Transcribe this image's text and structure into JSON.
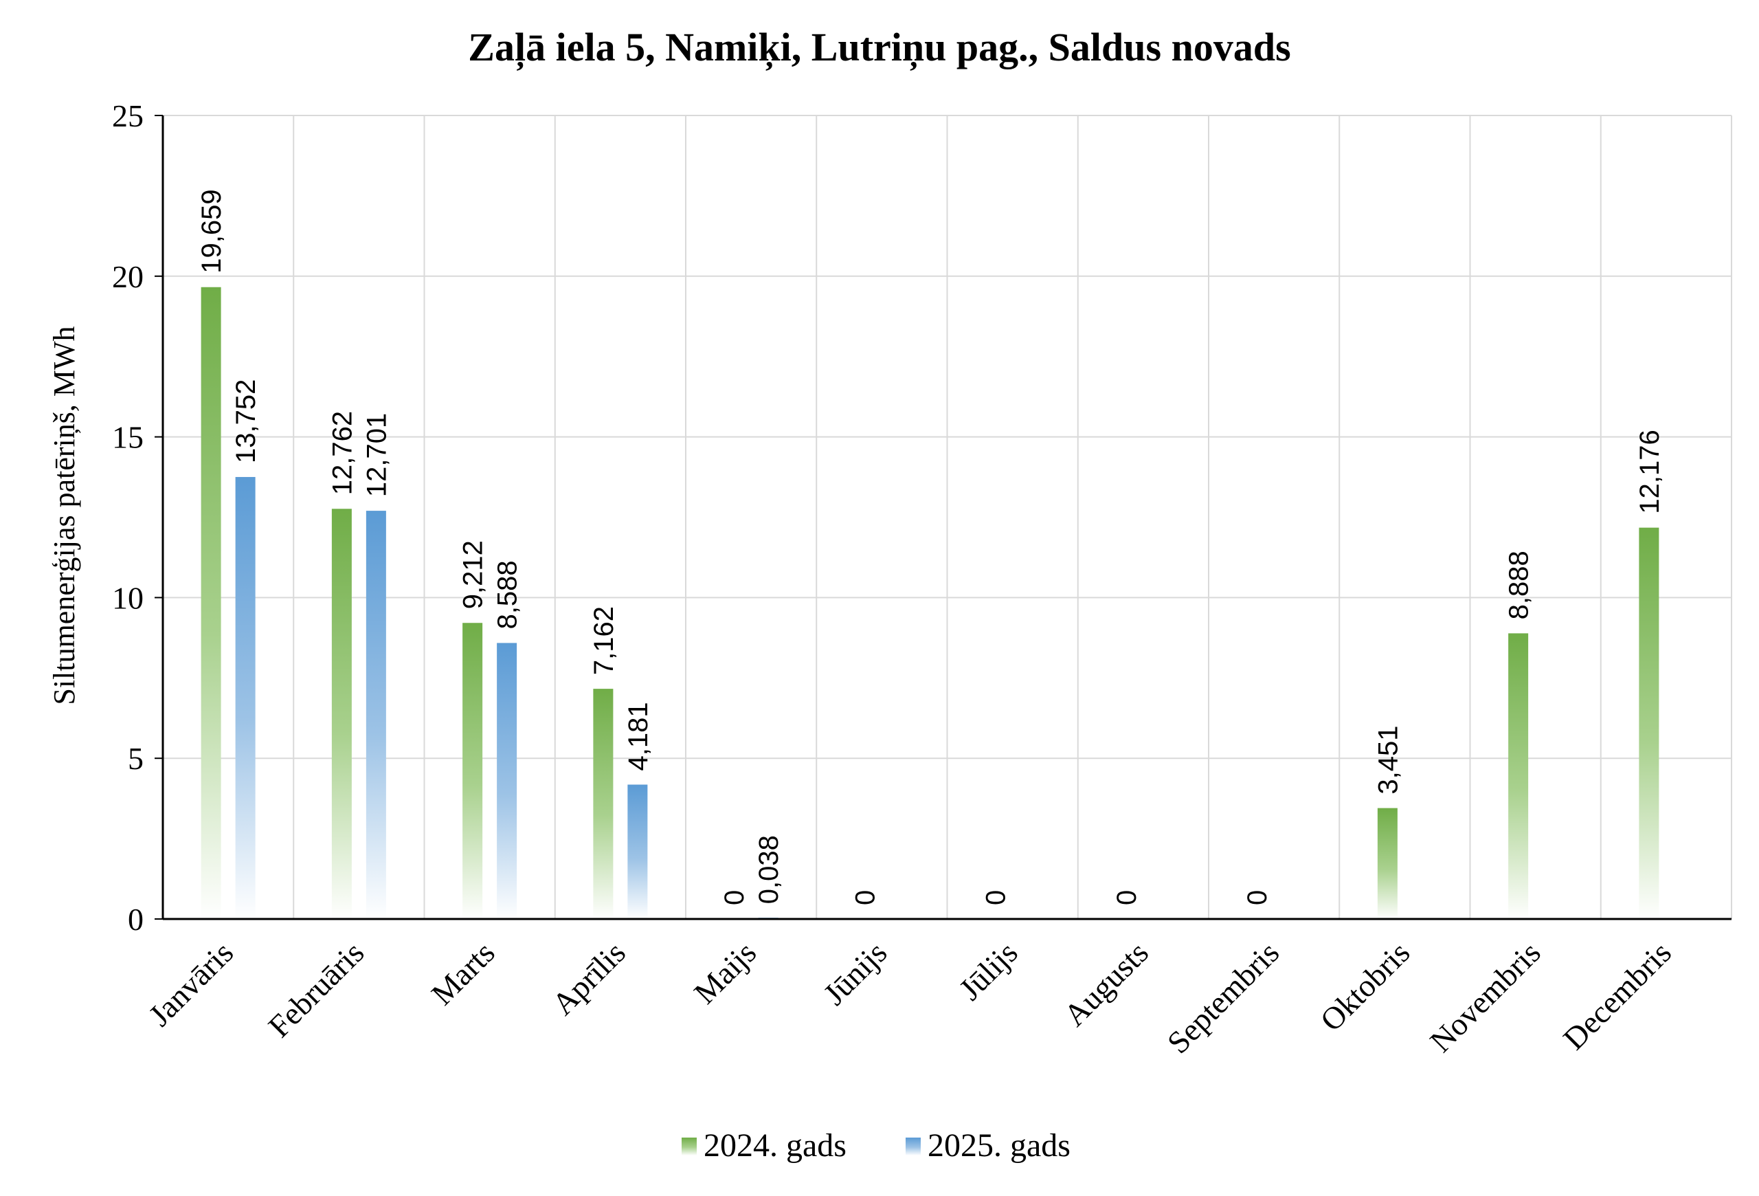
{
  "chart_data": {
    "type": "bar",
    "title": "Zaļā iela 5, Namiķi, Lutriņu pag., Saldus novads",
    "xlabel": "",
    "ylabel": "Siltumenerģijas patēriņš, MWh",
    "ylim": [
      0,
      25
    ],
    "yticks": [
      "0",
      "5",
      "10",
      "15",
      "20",
      "25"
    ],
    "categories": [
      "Janvāris",
      "Februāris",
      "Marts",
      "Aprīlis",
      "Maijs",
      "Jūnijs",
      "Jūlijs",
      "Augusts",
      "Septembris",
      "Oktobris",
      "Novembris",
      "Decembris"
    ],
    "series": [
      {
        "name": "2024. gads",
        "color": "#70ad47",
        "values": [
          19.659,
          12.762,
          9.212,
          7.162,
          0,
          0,
          0,
          0,
          0,
          3.451,
          8.888,
          12.176
        ],
        "labels": [
          "19,659",
          "12,762",
          "9,212",
          "7,162",
          "0",
          "0",
          "0",
          "0",
          "0",
          "3,451",
          "8,888",
          "12,176"
        ]
      },
      {
        "name": "2025. gads",
        "color": "#5b9bd5",
        "values": [
          13.752,
          12.701,
          8.588,
          4.181,
          0.038,
          null,
          null,
          null,
          null,
          null,
          null,
          null
        ],
        "labels": [
          "13,752",
          "12,701",
          "8,588",
          "4,181",
          "0,038",
          null,
          null,
          null,
          null,
          null,
          null,
          null
        ]
      }
    ],
    "grid": true,
    "legend_position": "bottom"
  }
}
